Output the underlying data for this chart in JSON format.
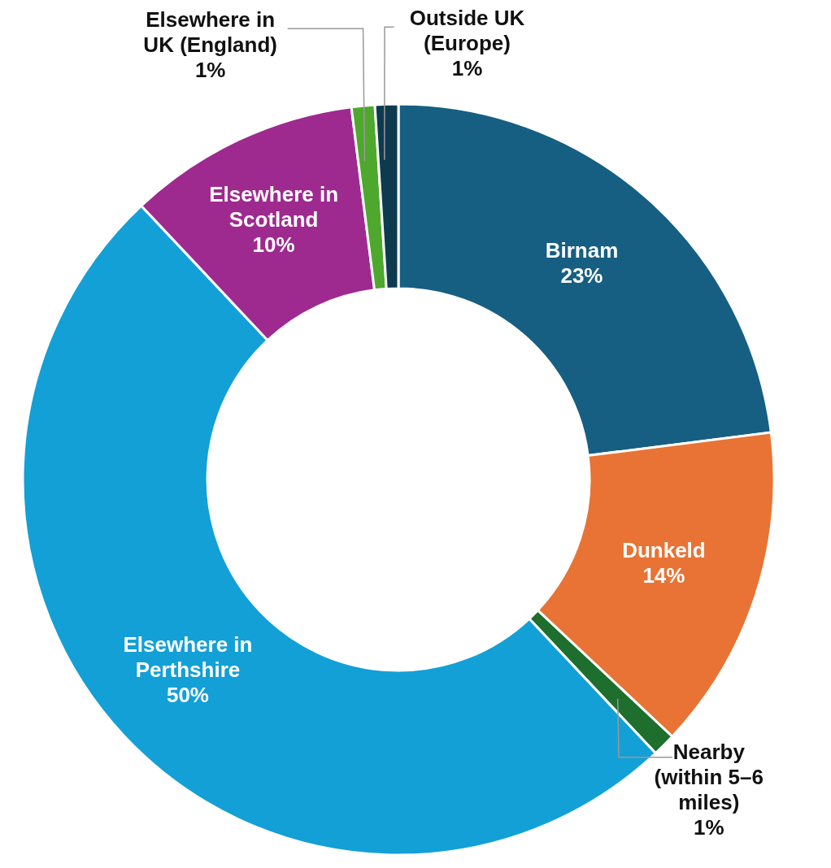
{
  "chart_data": {
    "type": "donut",
    "categories": [
      "Birnam",
      "Dunkeld",
      "Nearby (within 5–6 miles)",
      "Elsewhere in Perthshire",
      "Elsewhere in Scotland",
      "Elsewhere in UK (England)",
      "Outside UK (Europe)"
    ],
    "values": [
      23,
      14,
      1,
      50,
      10,
      1,
      1
    ],
    "value_labels": [
      "23%",
      "14%",
      "1%",
      "50%",
      "10%",
      "1%",
      "1%"
    ],
    "colors": [
      "#165f82",
      "#e87334",
      "#1e6e2e",
      "#12a0d7",
      "#9e2a8f",
      "#4ea82e",
      "#0e3a50"
    ],
    "legend": false
  }
}
